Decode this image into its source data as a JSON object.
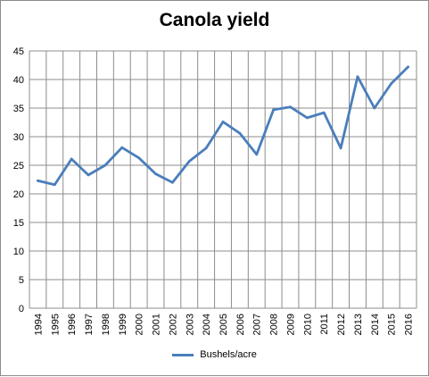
{
  "chart_data": {
    "type": "line",
    "title": "Canola yield",
    "xlabel": "",
    "ylabel": "",
    "ylim": [
      0,
      45
    ],
    "yticks": [
      0,
      5,
      10,
      15,
      20,
      25,
      30,
      35,
      40,
      45
    ],
    "categories": [
      "1994",
      "1995",
      "1996",
      "1997",
      "1998",
      "1999",
      "2000",
      "2001",
      "2002",
      "2003",
      "2004",
      "2005",
      "2006",
      "2007",
      "2008",
      "2009",
      "2010",
      "2011",
      "2012",
      "2013",
      "2014",
      "2015",
      "2016"
    ],
    "series": [
      {
        "name": "Bushels/acre",
        "color": "#4a7ebb",
        "values": [
          22.3,
          21.6,
          26.1,
          23.3,
          25.0,
          28.1,
          26.3,
          23.5,
          22.0,
          25.7,
          28.0,
          32.6,
          30.6,
          26.9,
          34.7,
          35.2,
          33.3,
          34.2,
          28.0,
          40.5,
          35.0,
          39.3,
          42.2
        ]
      }
    ],
    "grid": true,
    "legend": "bottom"
  }
}
